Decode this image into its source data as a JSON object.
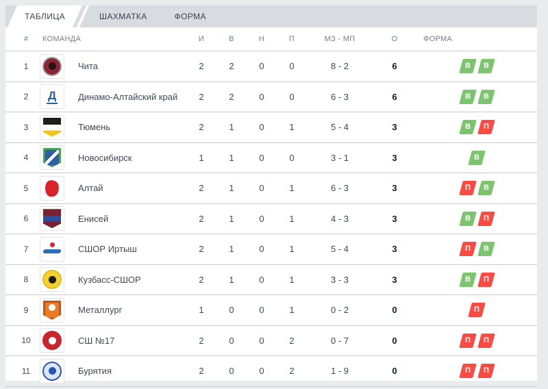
{
  "tabs": [
    {
      "label": "ТАБЛИЦА",
      "active": true
    },
    {
      "label": "ШАХМАТКА",
      "active": false
    },
    {
      "label": "ФОРМА",
      "active": false
    }
  ],
  "table": {
    "headers": {
      "num": "#",
      "team": "КОМАНДА",
      "played": "И",
      "wins": "В",
      "draws": "Н",
      "losses": "П",
      "goals": "МЗ - МП",
      "points": "О",
      "form": "ФОРМА"
    },
    "rows": [
      {
        "num": "1",
        "team": "Чита",
        "played": "2",
        "wins": "2",
        "draws": "0",
        "losses": "0",
        "goals": "8 - 2",
        "points": "6",
        "form": [
          "В",
          "В"
        ],
        "logo": {
          "kind": "circle",
          "c1": "#9aa1a9",
          "c2": "#8c2531",
          "c3": "#231418"
        }
      },
      {
        "num": "2",
        "team": "Динамо-Алтайский край",
        "played": "2",
        "wins": "2",
        "draws": "0",
        "losses": "0",
        "goals": "6 - 3",
        "points": "6",
        "form": [
          "В",
          "В"
        ],
        "logo": {
          "kind": "letter",
          "c1": "#2a5fa5",
          "letter": "Д"
        }
      },
      {
        "num": "3",
        "team": "Тюмень",
        "played": "2",
        "wins": "1",
        "draws": "0",
        "losses": "1",
        "goals": "5 - 4",
        "points": "3",
        "form": [
          "В",
          "П"
        ],
        "logo": {
          "kind": "bands",
          "c1": "#1f1e1c",
          "c2": "#ffffff",
          "c3": "#f0c51f"
        }
      },
      {
        "num": "4",
        "team": "Новосибирск",
        "played": "1",
        "wins": "1",
        "draws": "0",
        "losses": "0",
        "goals": "3 - 1",
        "points": "3",
        "form": [
          "В"
        ],
        "logo": {
          "kind": "shield",
          "c1": "#2d5ca8",
          "c2": "#47a447",
          "slash": "#ffffff"
        }
      },
      {
        "num": "5",
        "team": "Алтай",
        "played": "2",
        "wins": "1",
        "draws": "0",
        "losses": "1",
        "goals": "6 - 3",
        "points": "3",
        "form": [
          "П",
          "В"
        ],
        "logo": {
          "kind": "figure",
          "c1": "#d8232a"
        }
      },
      {
        "num": "6",
        "team": "Енисей",
        "played": "2",
        "wins": "1",
        "draws": "0",
        "losses": "1",
        "goals": "4 - 3",
        "points": "3",
        "form": [
          "В",
          "П"
        ],
        "logo": {
          "kind": "bands",
          "c1": "#7b2030",
          "c2": "#2a4f9e",
          "c3": "#7b2030"
        }
      },
      {
        "num": "7",
        "team": "СШОР Иртыш",
        "played": "2",
        "wins": "1",
        "draws": "0",
        "losses": "1",
        "goals": "5 - 4",
        "points": "3",
        "form": [
          "П",
          "В"
        ],
        "logo": {
          "kind": "wave",
          "c1": "#2a6fb8",
          "c2": "#d8232a"
        }
      },
      {
        "num": "8",
        "team": "Кузбасс-СШОР",
        "played": "2",
        "wins": "1",
        "draws": "0",
        "losses": "1",
        "goals": "3 - 3",
        "points": "3",
        "form": [
          "В",
          "П"
        ],
        "logo": {
          "kind": "circle",
          "c1": "#e0bd1c",
          "c2": "#f4d12e",
          "c3": "#1e1e1e"
        }
      },
      {
        "num": "9",
        "team": "Металлург",
        "played": "1",
        "wins": "0",
        "draws": "0",
        "losses": "1",
        "goals": "0 - 2",
        "points": "0",
        "form": [
          "П"
        ],
        "logo": {
          "kind": "shield",
          "c1": "#e87b25",
          "c2": "#c2571a",
          "dot": "#ffffff"
        }
      },
      {
        "num": "10",
        "team": "СШ №17",
        "played": "2",
        "wins": "0",
        "draws": "0",
        "losses": "2",
        "goals": "0 - 7",
        "points": "0",
        "form": [
          "П",
          "П"
        ],
        "logo": {
          "kind": "circle",
          "c1": "#c8252c",
          "c2": "#c8252c",
          "c3": "#ffffff"
        }
      },
      {
        "num": "11",
        "team": "Бурятия",
        "played": "2",
        "wins": "0",
        "draws": "0",
        "losses": "2",
        "goals": "1 - 9",
        "points": "0",
        "form": [
          "П",
          "П"
        ],
        "logo": {
          "kind": "circle",
          "c1": "#2a52b0",
          "c2": "#dbe6f6",
          "c3": "#2a52b0"
        }
      }
    ]
  },
  "legend": {
    "win_letter": "В",
    "loss_letter": "П"
  },
  "colors": {
    "win_green": "#7dc46e",
    "loss_red": "#fb4a42",
    "tabbar_gray": "#d8dbdf",
    "page_bg": "#eaebed",
    "divider": "#c9cbce"
  }
}
